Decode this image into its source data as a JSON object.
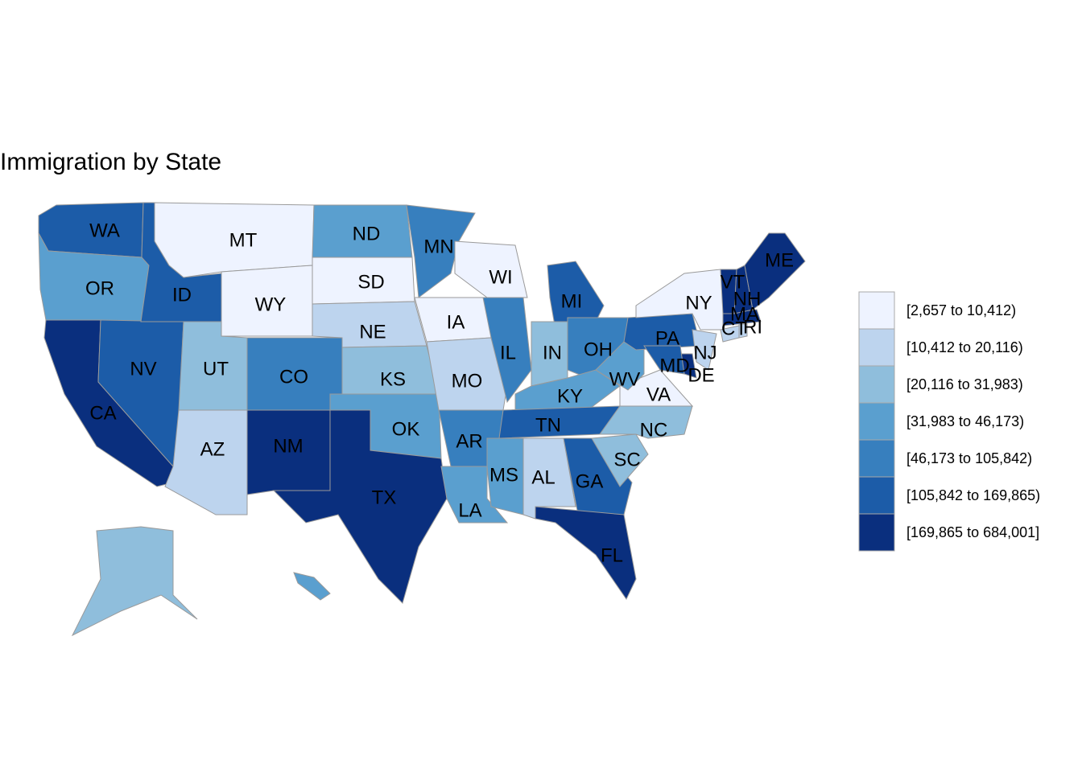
{
  "title": "Immigration by State",
  "legend": {
    "items": [
      {
        "label": "[2,657 to 10,412)",
        "color": "#eef3ff"
      },
      {
        "label": "[10,412 to 20,116)",
        "color": "#bdd4ee"
      },
      {
        "label": "[20,116 to 31,983)",
        "color": "#8fbedc"
      },
      {
        "label": "[31,983 to 46,173)",
        "color": "#5a9fcf"
      },
      {
        "label": "[46,173 to 105,842)",
        "color": "#377fbe"
      },
      {
        "label": "[105,842 to 169,865)",
        "color": "#1c5ca8"
      },
      {
        "label": "[169,865 to 684,001]",
        "color": "#0a2f7e"
      }
    ]
  },
  "states": [
    {
      "label": "WA",
      "class": 5
    },
    {
      "label": "OR",
      "class": 3
    },
    {
      "label": "CA",
      "class": 6
    },
    {
      "label": "NV",
      "class": 5
    },
    {
      "label": "ID",
      "class": 5
    },
    {
      "label": "MT",
      "class": 0
    },
    {
      "label": "WY",
      "class": 0
    },
    {
      "label": "UT",
      "class": 2
    },
    {
      "label": "AZ",
      "class": 1
    },
    {
      "label": "CO",
      "class": 4
    },
    {
      "label": "NM",
      "class": 6
    },
    {
      "label": "ND",
      "class": 3
    },
    {
      "label": "SD",
      "class": 0
    },
    {
      "label": "NE",
      "class": 1
    },
    {
      "label": "KS",
      "class": 2
    },
    {
      "label": "OK",
      "class": 3
    },
    {
      "label": "TX",
      "class": 6
    },
    {
      "label": "MN",
      "class": 4
    },
    {
      "label": "IA",
      "class": 0
    },
    {
      "label": "MO",
      "class": 1
    },
    {
      "label": "AR",
      "class": 4
    },
    {
      "label": "LA",
      "class": 3
    },
    {
      "label": "WI",
      "class": 0
    },
    {
      "label": "IL",
      "class": 4
    },
    {
      "label": "MI",
      "class": 5
    },
    {
      "label": "IN",
      "class": 2
    },
    {
      "label": "OH",
      "class": 4
    },
    {
      "label": "KY",
      "class": 3
    },
    {
      "label": "TN",
      "class": 5
    },
    {
      "label": "MS",
      "class": 3
    },
    {
      "label": "AL",
      "class": 1
    },
    {
      "label": "GA",
      "class": 5
    },
    {
      "label": "FL",
      "class": 6
    },
    {
      "label": "SC",
      "class": 2
    },
    {
      "label": "NC",
      "class": 2
    },
    {
      "label": "VA",
      "class": 0
    },
    {
      "label": "WV",
      "class": 3
    },
    {
      "label": "PA",
      "class": 5
    },
    {
      "label": "NY",
      "class": 0
    },
    {
      "label": "NJ",
      "class": 1
    },
    {
      "label": "DE",
      "class": 6
    },
    {
      "label": "MD",
      "class": 5
    },
    {
      "label": "CT",
      "class": 1
    },
    {
      "label": "RI",
      "class": 1
    },
    {
      "label": "MA",
      "class": 6
    },
    {
      "label": "VT",
      "class": 6
    },
    {
      "label": "NH",
      "class": 6
    },
    {
      "label": "ME",
      "class": 6
    }
  ]
}
